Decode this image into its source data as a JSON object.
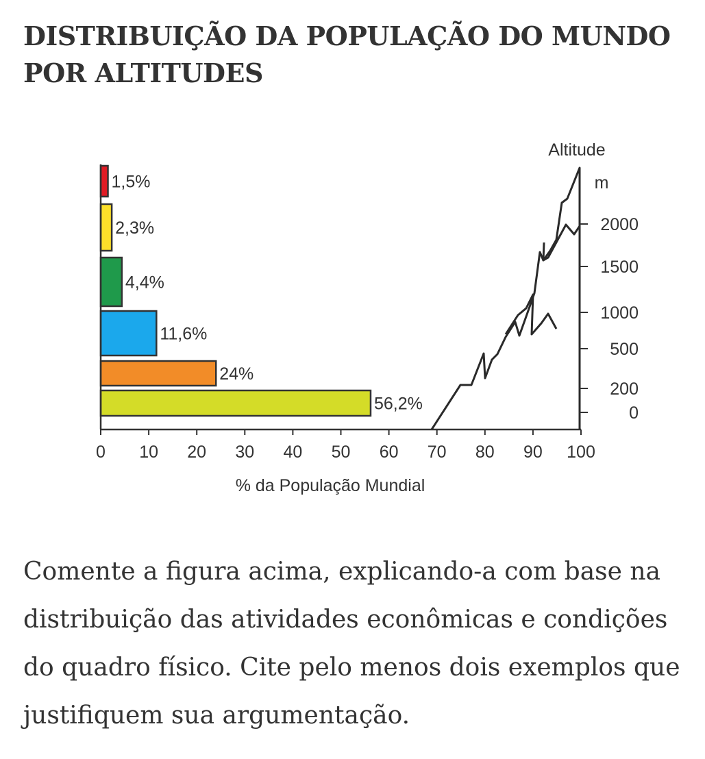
{
  "header": {
    "title_line1": "DISTRIBUIÇÃO DA POPULAÇÃO DO MUNDO",
    "title_line2": "POR ALTITUDES"
  },
  "chart_data": {
    "type": "bar",
    "orientation": "horizontal",
    "categories": [
      "0-200",
      "200-500",
      "500-1000",
      "1000-1500",
      "1500-2000",
      "2000+"
    ],
    "values": [
      56.2,
      24,
      11.6,
      4.4,
      2.3,
      1.5
    ],
    "value_labels": [
      "56,2%",
      "24%",
      "11,6%",
      "4,4%",
      "2,3%",
      "1,5%"
    ],
    "colors": [
      "#d4dc28",
      "#f28c28",
      "#1ba8ec",
      "#1f9a4b",
      "#fde02a",
      "#e01b24"
    ],
    "xlabel": "% da População Mundial",
    "xlim": [
      0,
      100
    ],
    "x_ticks": [
      0,
      10,
      20,
      30,
      40,
      50,
      60,
      70,
      80,
      90,
      100
    ],
    "x_tick_labels": [
      "0",
      "10",
      "20",
      "30",
      "40",
      "50",
      "60",
      "70",
      "80",
      "90",
      "100"
    ],
    "right_axis": {
      "label": "Altitude",
      "unit": "m",
      "tick_labels": [
        "0",
        "200",
        "500",
        "1000",
        "1500",
        "2000"
      ]
    },
    "decoration": "mountain-profile-outline",
    "grid": false
  },
  "question": {
    "text": "Comente a figura acima, explicando-a com base na distribuição das atividades econômicas e condições do quadro físico. Cite pelo menos dois exemplos que justifiquem sua argumentação."
  }
}
